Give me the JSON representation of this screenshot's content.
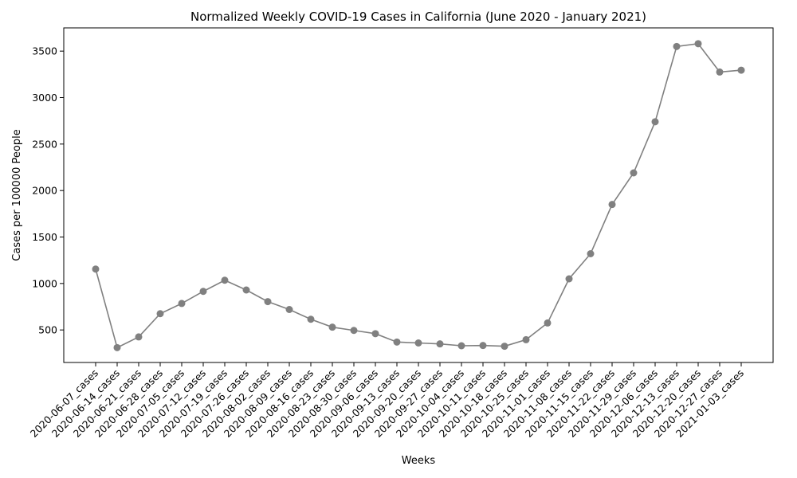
{
  "chart_data": {
    "type": "line",
    "title": "Normalized Weekly COVID-19 Cases in California (June 2020 - January 2021)",
    "xlabel": "Weeks",
    "ylabel": "Cases per 100000 People",
    "ylim": [
      150,
      3750
    ],
    "yticks": [
      500,
      1000,
      1500,
      2000,
      2500,
      3000,
      3500
    ],
    "grid": false,
    "line_color": "#808080",
    "categories": [
      "2020-06-07_cases",
      "2020-06-14_cases",
      "2020-06-21_cases",
      "2020-06-28_cases",
      "2020-07-05_cases",
      "2020-07-12_cases",
      "2020-07-19_cases",
      "2020-07-26_cases",
      "2020-08-02_cases",
      "2020-08-09_cases",
      "2020-08-16_cases",
      "2020-08-23_cases",
      "2020-08-30_cases",
      "2020-09-06_cases",
      "2020-09-13_cases",
      "2020-09-20_cases",
      "2020-09-27_cases",
      "2020-10-04_cases",
      "2020-10-11_cases",
      "2020-10-18_cases",
      "2020-10-25_cases",
      "2020-11-01_cases",
      "2020-11-08_cases",
      "2020-11-15_cases",
      "2020-11-22_cases",
      "2020-11-29_cases",
      "2020-12-06_cases",
      "2020-12-13_cases",
      "2020-12-20_cases",
      "2020-12-27_cases",
      "2021-01-03_cases"
    ],
    "series": [
      {
        "values": [
          1155,
          310,
          425,
          675,
          785,
          915,
          1035,
          930,
          805,
          720,
          615,
          530,
          495,
          460,
          370,
          360,
          350,
          330,
          333,
          325,
          395,
          575,
          1050,
          1320,
          1850,
          2190,
          2740,
          3550,
          3580,
          3275,
          3295
        ]
      }
    ]
  }
}
